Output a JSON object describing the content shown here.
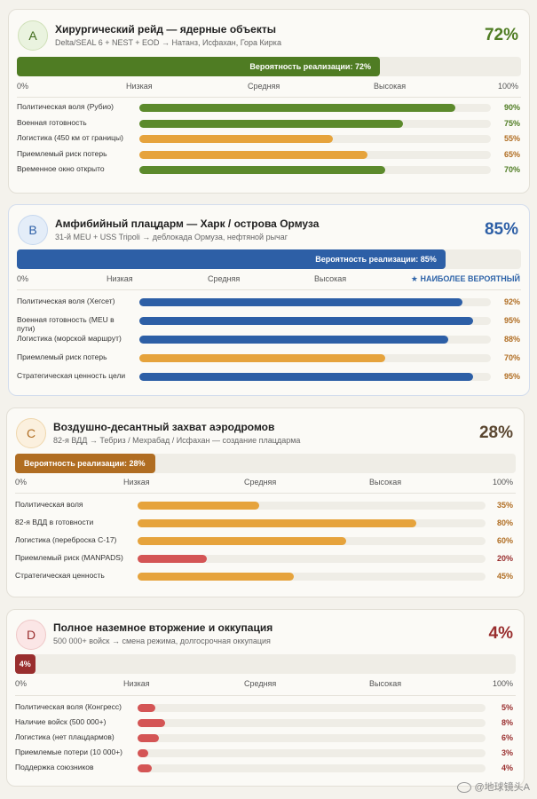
{
  "scale_labels": {
    "low": "Низкая",
    "mid": "Средняя",
    "high": "Высокая",
    "min": "0%",
    "max": "100%"
  },
  "colors": {
    "green": "#5c8a2c",
    "green_dark": "#4f7c23",
    "blue": "#2d5fa6",
    "blue_bar": "#4a86d2",
    "orange": "#e6a33c",
    "orange_dark": "#b06d22",
    "red": "#d45555",
    "red_dark": "#992e2e"
  },
  "scenarios": [
    {
      "id": "A",
      "title": "Хирургический рейд — ядерные объекты",
      "subtitle": "Delta/SEAL 6 + NEST + EOD → Натанз, Исфахан, Гора Кирка",
      "percent_text": "72%",
      "probability": 0.72,
      "bar_label": "Вероятность реализации: 72%",
      "note": "",
      "factors": [
        {
          "label": "Политическая воля (Рубио)",
          "value": 0.9,
          "text": "90%",
          "color": "green"
        },
        {
          "label": "Военная готовность",
          "value": 0.75,
          "text": "75%",
          "color": "green"
        },
        {
          "label": "Логистика (450 км от границы)",
          "value": 0.55,
          "text": "55%",
          "color": "orange"
        },
        {
          "label": "Приемлемый риск потерь",
          "value": 0.65,
          "text": "65%",
          "color": "orange"
        },
        {
          "label": "Временное окно открыто",
          "value": 0.7,
          "text": "70%",
          "color": "green"
        }
      ]
    },
    {
      "id": "B",
      "title": "Амфибийный плацдарм — Харк / острова Ормуза",
      "subtitle": "31-й MEU + USS Tripoli → деблокада Ормуза, нефтяной рычаг",
      "percent_text": "85%",
      "probability": 0.85,
      "bar_label": "Вероятность реализации: 85%",
      "note": "★ НАИБОЛЕЕ ВЕРОЯТНЫЙ",
      "factors": [
        {
          "label": "Политическая воля (Хегсет)",
          "value": 0.92,
          "text": "92%",
          "color": "blue"
        },
        {
          "label": "Военная готовность (MEU в пути)",
          "value": 0.95,
          "text": "95%",
          "color": "blue"
        },
        {
          "label": "Логистика (морской маршрут)",
          "value": 0.88,
          "text": "88%",
          "color": "blue"
        },
        {
          "label": "Приемлемый риск потерь",
          "value": 0.7,
          "text": "70%",
          "color": "orange"
        },
        {
          "label": "Стратегическая ценность цели",
          "value": 0.95,
          "text": "95%",
          "color": "blue"
        }
      ]
    },
    {
      "id": "C",
      "title": "Воздушно-десантный захват аэродромов",
      "subtitle": "82-я ВДД → Тебриз / Мехрабад / Исфахан — создание плацдарма",
      "percent_text": "28%",
      "probability": 0.28,
      "bar_label": "Вероятность реализации: 28%",
      "note": "",
      "factors": [
        {
          "label": "Политическая воля",
          "value": 0.35,
          "text": "35%",
          "color": "orange"
        },
        {
          "label": "82-я ВДД в готовности",
          "value": 0.8,
          "text": "80%",
          "color": "orange"
        },
        {
          "label": "Логистика (переброска C-17)",
          "value": 0.6,
          "text": "60%",
          "color": "orange"
        },
        {
          "label": "Приемлемый риск (MANPADS)",
          "value": 0.2,
          "text": "20%",
          "color": "red"
        },
        {
          "label": "Стратегическая ценность",
          "value": 0.45,
          "text": "45%",
          "color": "orange"
        }
      ]
    },
    {
      "id": "D",
      "title": "Полное наземное вторжение и оккупация",
      "subtitle": "500 000+ войск → смена режима, долгосрочная оккупация",
      "percent_text": "4%",
      "probability": 0.04,
      "bar_label": "4%",
      "note": "",
      "factors": [
        {
          "label": "Политическая воля (Конгресс)",
          "value": 0.05,
          "text": "5%",
          "color": "red"
        },
        {
          "label": "Наличие войск (500 000+)",
          "value": 0.08,
          "text": "8%",
          "color": "red"
        },
        {
          "label": "Логистика (нет плацдармов)",
          "value": 0.06,
          "text": "6%",
          "color": "red"
        },
        {
          "label": "Приемлемые потери (10 000+)",
          "value": 0.03,
          "text": "3%",
          "color": "red"
        },
        {
          "label": "Поддержка союзников",
          "value": 0.04,
          "text": "4%",
          "color": "red"
        }
      ]
    }
  ],
  "watermark": "@地球镜头A"
}
